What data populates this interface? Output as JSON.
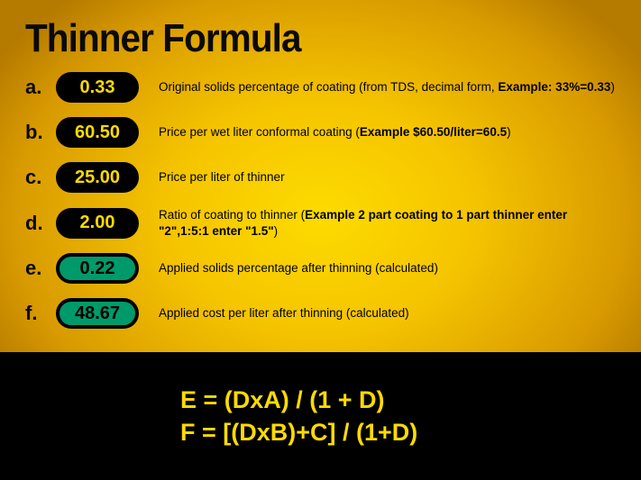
{
  "title": "Thinner Formula",
  "rows": [
    {
      "letter": "a.",
      "value": "0.33",
      "pill_bg": "#000000",
      "pill_fg": "#fddb00",
      "desc_plain": "Original solids percentage of coating (from TDS, decimal form, ",
      "desc_bold": "Example: 33%=0.33",
      "desc_tail": ")"
    },
    {
      "letter": "b.",
      "value": "60.50",
      "pill_bg": "#000000",
      "pill_fg": "#fddb00",
      "desc_plain": "Price per wet liter conformal coating (",
      "desc_bold": "Example $60.50/liter=60.5",
      "desc_tail": ")"
    },
    {
      "letter": "c.",
      "value": "25.00",
      "pill_bg": "#000000",
      "pill_fg": "#fddb00",
      "desc_plain": "Price per liter of thinner",
      "desc_bold": "",
      "desc_tail": ""
    },
    {
      "letter": "d.",
      "value": "2.00",
      "pill_bg": "#000000",
      "pill_fg": "#fddb00",
      "desc_plain": "Ratio of coating to thinner (",
      "desc_bold": "Example 2 part coating to 1 part thinner enter \"2\",1:5:1 enter \"1.5\"",
      "desc_tail": ")"
    },
    {
      "letter": "e.",
      "value": "0.22",
      "pill_bg": "#009a6a",
      "pill_fg": "#000000",
      "desc_plain": "Applied solids percentage after thinning (calculated)",
      "desc_bold": "",
      "desc_tail": ""
    },
    {
      "letter": "f.",
      "value": "48.67",
      "pill_bg": "#009a6a",
      "pill_fg": "#000000",
      "desc_plain": "Applied cost per liter after thinning (calculated)",
      "desc_bold": "",
      "desc_tail": ""
    }
  ],
  "formulas": {
    "line1": "E = (DxA) / (1 + D)",
    "line2": "F = [(DxB)+C] / (1+D)"
  },
  "colors": {
    "bg_center": "#fddb00",
    "bg_edge": "#b57a00",
    "footer_bg": "#000000",
    "footer_fg": "#fddb00"
  }
}
